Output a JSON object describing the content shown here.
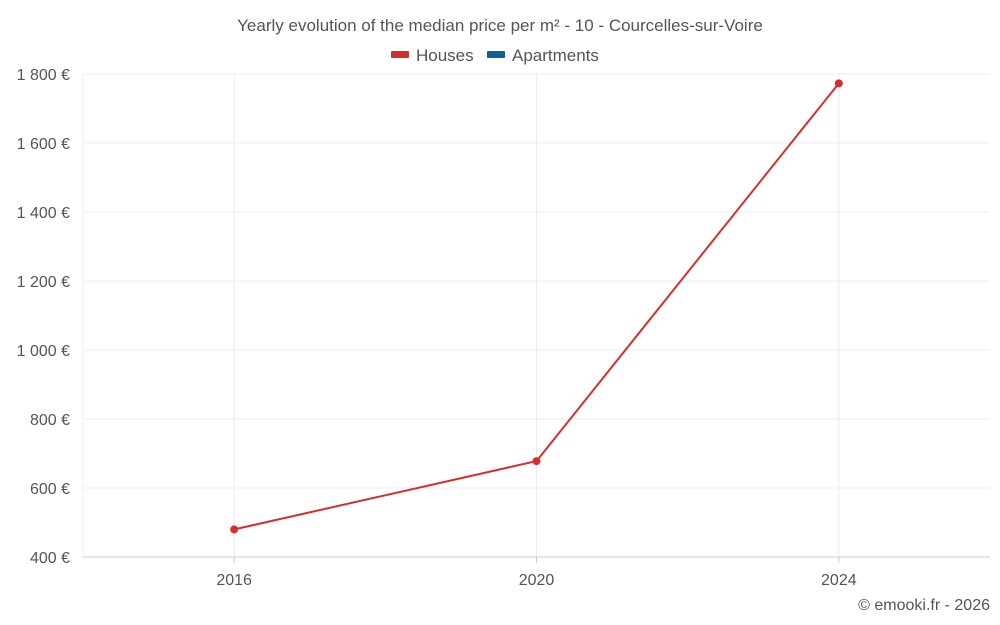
{
  "chart_data": {
    "type": "line",
    "title": "Yearly evolution of the median price per m² - 10 - Courcelles-sur-Voire",
    "categories": [
      "2016",
      "2020",
      "2024"
    ],
    "series": [
      {
        "name": "Houses",
        "color": "#d32f2f",
        "values": [
          480,
          678,
          1773
        ]
      },
      {
        "name": "Apartments",
        "color": "#0d6193",
        "values": [
          null,
          null,
          null
        ]
      }
    ],
    "ylim": [
      400,
      1800
    ],
    "yticks": [
      400,
      600,
      800,
      1000,
      1200,
      1400,
      1600,
      1800
    ],
    "ytick_labels": [
      "400 €",
      "600 €",
      "800 €",
      "1 000 €",
      "1 200 €",
      "1 400 €",
      "1 600 €",
      "1 800 €"
    ],
    "xlabel": "",
    "ylabel": "",
    "grid": true,
    "legend_position": "top-center"
  },
  "credit": "© emooki.fr - 2026"
}
